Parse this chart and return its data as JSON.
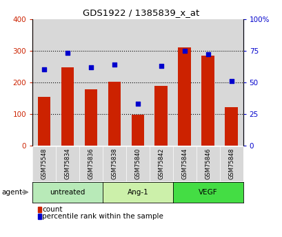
{
  "title": "GDS1922 / 1385839_x_at",
  "categories": [
    "GSM75548",
    "GSM75834",
    "GSM75836",
    "GSM75838",
    "GSM75840",
    "GSM75842",
    "GSM75844",
    "GSM75846",
    "GSM75848"
  ],
  "counts": [
    155,
    248,
    178,
    203,
    97,
    188,
    310,
    285,
    122
  ],
  "percentiles": [
    60,
    73,
    62,
    64,
    33,
    63,
    75,
    72,
    51
  ],
  "groups": [
    {
      "label": "untreated",
      "indices": [
        0,
        1,
        2
      ],
      "color": "#b8eab8"
    },
    {
      "label": "Ang-1",
      "indices": [
        3,
        4,
        5
      ],
      "color": "#ccf0aa"
    },
    {
      "label": "VEGF",
      "indices": [
        6,
        7,
        8
      ],
      "color": "#44dd44"
    }
  ],
  "bar_color": "#cc2200",
  "dot_color": "#0000cc",
  "left_axis_color": "#cc2200",
  "right_axis_color": "#0000cc",
  "ylim_left": [
    0,
    400
  ],
  "ylim_right": [
    0,
    100
  ],
  "yticks_left": [
    0,
    100,
    200,
    300,
    400
  ],
  "ytick_labels_right": [
    "0",
    "25",
    "50",
    "75",
    "100%"
  ],
  "legend_count_label": "count",
  "legend_pct_label": "percentile rank within the sample",
  "agent_label": "agent",
  "col_bg": "#d8d8d8",
  "plot_bg": "#ffffff",
  "fig_bg": "#ffffff"
}
